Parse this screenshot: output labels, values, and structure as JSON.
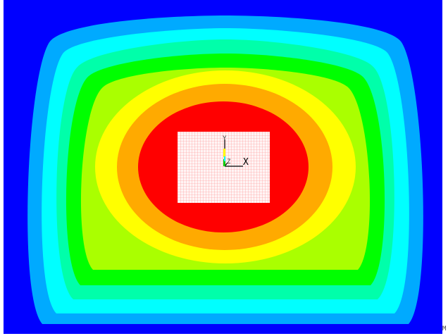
{
  "plot": {
    "triad": {
      "x_label": "X",
      "y_label": "Y",
      "z_label": "Z"
    },
    "corner_label": "M"
  },
  "colors": {
    "background": "#ffffff",
    "outer": "#0000ff",
    "contours": [
      "#00aaff",
      "#00ffff",
      "#00ffaa",
      "#00ff00",
      "#aaff00",
      "#ffff00",
      "#ffaa00",
      "#ff0000"
    ],
    "mesh_fill": "#fff5f5",
    "mesh_line": "#ff8a8a",
    "axis": "#000000"
  }
}
